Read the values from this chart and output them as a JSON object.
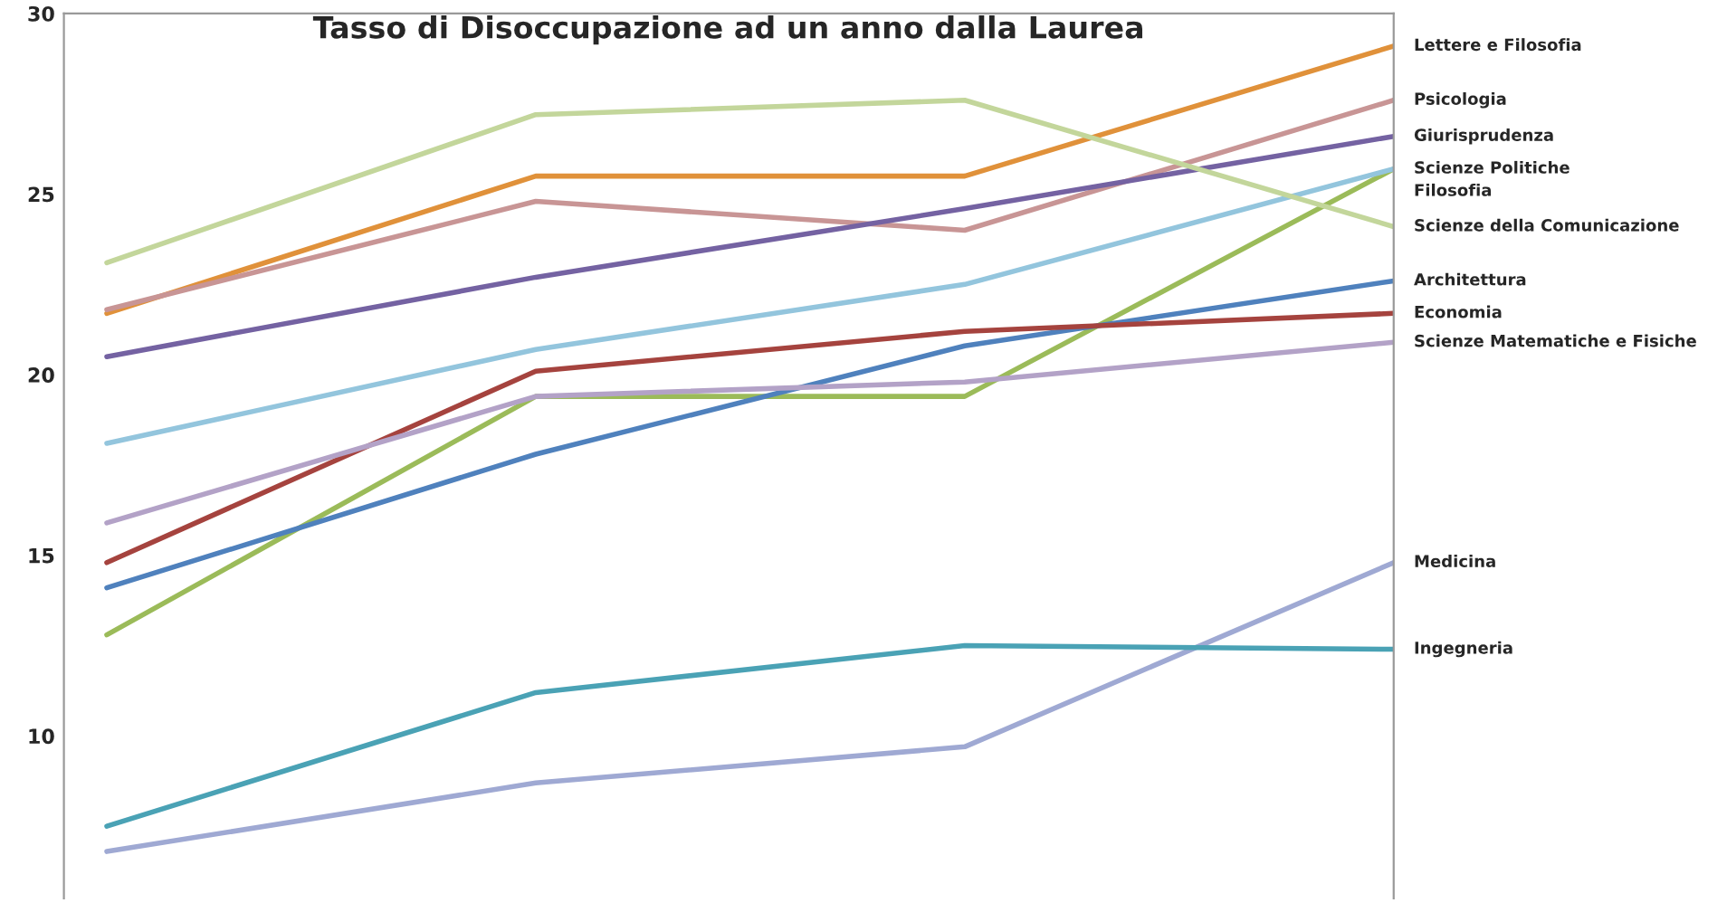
{
  "chart_data": {
    "type": "line",
    "title": "Tasso di Disoccupazione ad un anno dalla Laurea",
    "categories": [
      null,
      null,
      null,
      null
    ],
    "series": [
      {
        "name": "Lettere e Filosofia",
        "color": "#e0913a",
        "values": [
          21.7,
          25.5,
          25.5,
          29.1
        ]
      },
      {
        "name": "Psicologia",
        "color": "#c89595",
        "values": [
          21.8,
          24.8,
          24.0,
          27.6
        ]
      },
      {
        "name": "Giurisprudenza",
        "color": "#7462a2",
        "values": [
          20.5,
          22.7,
          24.6,
          26.6
        ]
      },
      {
        "name": "Filosofia",
        "color": "#9bbb59",
        "values": [
          12.8,
          19.4,
          19.4,
          25.7
        ]
      },
      {
        "name": "Scienze Politiche",
        "color": "#93c5dd",
        "values": [
          18.1,
          20.7,
          22.5,
          25.7
        ]
      },
      {
        "name": "Scienze della Comunicazione",
        "color": "#c3d69b",
        "values": [
          23.1,
          27.2,
          27.6,
          24.1
        ]
      },
      {
        "name": "Architettura",
        "color": "#4f81bd",
        "values": [
          14.1,
          17.8,
          20.8,
          22.6
        ]
      },
      {
        "name": "Economia",
        "color": "#a5433e",
        "values": [
          14.8,
          20.1,
          21.2,
          21.7
        ]
      },
      {
        "name": "Scienze Matematiche e Fisiche",
        "color": "#b3a2c7",
        "values": [
          15.9,
          19.4,
          19.8,
          20.9
        ]
      },
      {
        "name": "Medicina",
        "color": "#9fa9d3",
        "values": [
          6.8,
          8.7,
          9.7,
          14.8
        ]
      },
      {
        "name": "Ingegneria",
        "color": "#4aa2b5",
        "values": [
          7.5,
          11.2,
          12.5,
          12.4
        ]
      }
    ],
    "ylim": [
      5.5,
      30
    ],
    "yticks": [
      10,
      15,
      20,
      25,
      30
    ],
    "grid": false,
    "legend": false,
    "tick_labels": "y",
    "marker": "none",
    "line_style": "solid"
  }
}
